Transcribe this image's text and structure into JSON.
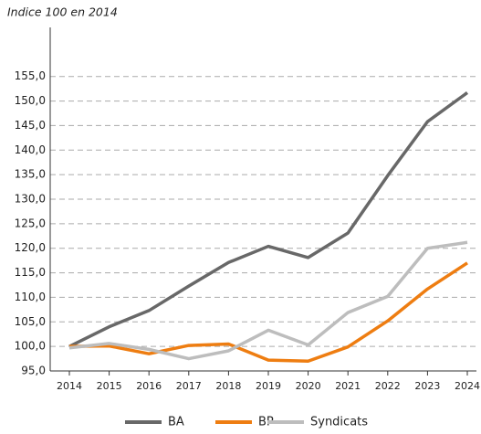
{
  "chart_data": {
    "type": "line",
    "title": "Indice 100 en 2014",
    "categories": [
      "2014",
      "2015",
      "2016",
      "2017",
      "2018",
      "2019",
      "2020",
      "2021",
      "2022",
      "2023",
      "2024"
    ],
    "series": [
      {
        "name": "BA",
        "color": "#686868",
        "values": [
          100,
          104,
          107.3,
          112.3,
          117.1,
          120.4,
          118.1,
          123.1,
          134.8,
          145.8,
          151.7
        ]
      },
      {
        "name": "BP",
        "color": "#ee7d11",
        "values": [
          100,
          100.1,
          98.5,
          100.2,
          100.5,
          97.2,
          97.0,
          99.9,
          105.2,
          111.7,
          117
        ]
      },
      {
        "name": "Syndicats",
        "color": "#bdbdbd",
        "values": [
          99.7,
          100.6,
          99.4,
          97.5,
          99.1,
          103.3,
          100.3,
          106.9,
          110.2,
          120,
          121.2
        ]
      }
    ],
    "ylim": [
      95,
      165
    ],
    "yticks": [
      {
        "value": 95,
        "label": "95,0"
      },
      {
        "value": 100,
        "label": "100,0"
      },
      {
        "value": 105,
        "label": "105,0"
      },
      {
        "value": 110,
        "label": "110,0"
      },
      {
        "value": 115,
        "label": "115,0"
      },
      {
        "value": 120,
        "label": "120,0"
      },
      {
        "value": 125,
        "label": "125,0"
      },
      {
        "value": 130,
        "label": "130,0"
      },
      {
        "value": 135,
        "label": "135,0"
      },
      {
        "value": 140,
        "label": "140,0"
      },
      {
        "value": 145,
        "label": "145,0"
      },
      {
        "value": 150,
        "label": "150,0"
      },
      {
        "value": 155,
        "label": "155,0"
      }
    ],
    "grid": true,
    "legend": "bottom"
  }
}
